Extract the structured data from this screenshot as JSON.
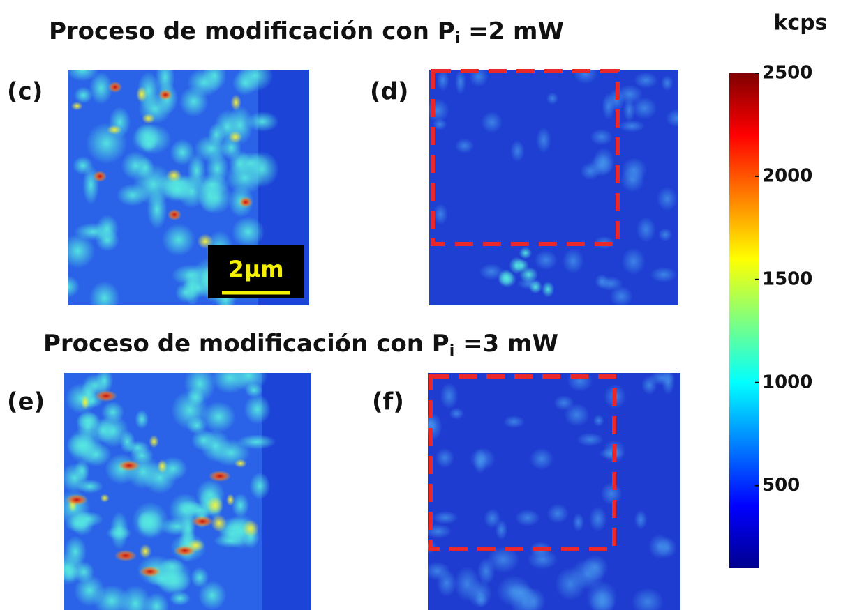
{
  "rows": [
    {
      "title": {
        "text": "Proceso de modificación con P",
        "subscript": "i",
        "suffix": " =2 mW"
      },
      "panels": [
        {
          "label": "(c)",
          "scale_bar": "2μm"
        },
        {
          "label": "(d)"
        }
      ]
    },
    {
      "title": {
        "text": "Proceso de modificación con P",
        "subscript": "i",
        "suffix": " =3 mW"
      },
      "panels": [
        {
          "label": "(e)"
        },
        {
          "label": "(f)"
        }
      ]
    }
  ],
  "colorbar": {
    "unit": "kcps",
    "lim": [
      100,
      2500
    ],
    "ticks": [
      500,
      1000,
      1500,
      2000,
      2500
    ]
  }
}
